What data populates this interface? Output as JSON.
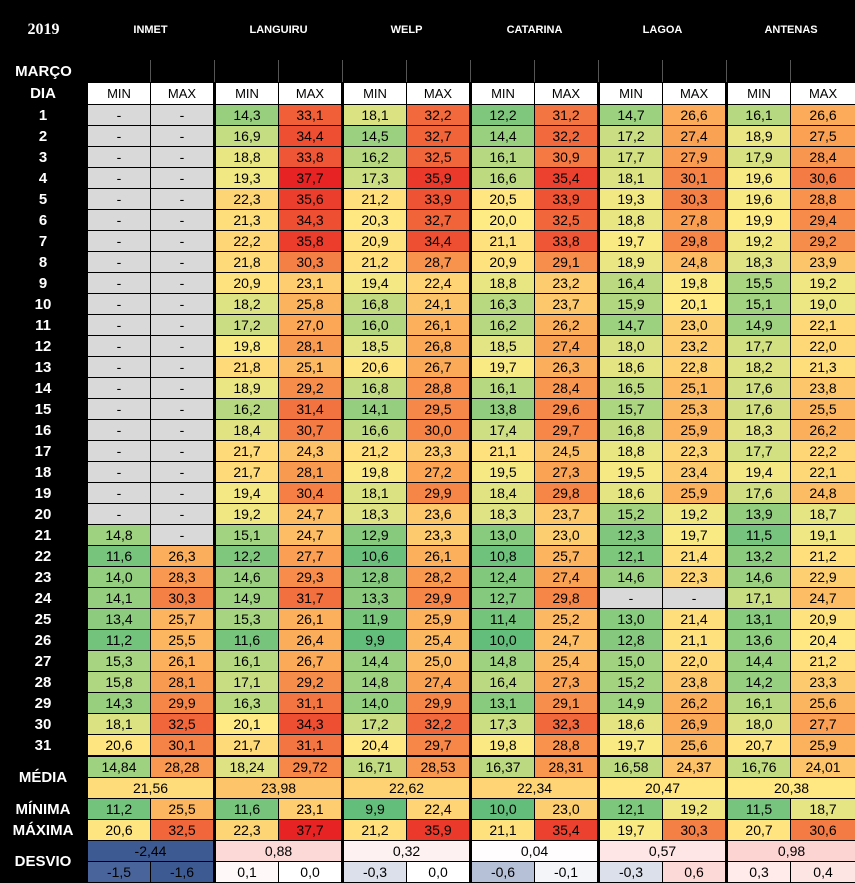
{
  "year": "2019",
  "month_label": "MARÇO",
  "day_label": "DIA",
  "min_label": "MIN",
  "max_label": "MAX",
  "stations": [
    "INMET",
    "LANGUIRU",
    "WELP",
    "CATARINA",
    "LAGOA",
    "ANTENAS"
  ],
  "rows": [
    {
      "day": "1",
      "v": [
        "-",
        "-",
        "14,3",
        "33,1",
        "18,1",
        "32,2",
        "12,2",
        "31,2",
        "14,7",
        "26,6",
        "16,1",
        "26,6"
      ]
    },
    {
      "day": "2",
      "v": [
        "-",
        "-",
        "16,9",
        "34,4",
        "14,5",
        "32,7",
        "14,4",
        "32,2",
        "17,2",
        "27,4",
        "18,9",
        "27,5"
      ]
    },
    {
      "day": "3",
      "v": [
        "-",
        "-",
        "18,8",
        "33,8",
        "16,2",
        "32,5",
        "16,1",
        "30,9",
        "17,7",
        "27,9",
        "17,9",
        "28,4"
      ]
    },
    {
      "day": "4",
      "v": [
        "-",
        "-",
        "19,3",
        "37,7",
        "17,3",
        "35,9",
        "16,6",
        "35,4",
        "18,1",
        "30,1",
        "19,6",
        "30,6"
      ]
    },
    {
      "day": "5",
      "v": [
        "-",
        "-",
        "22,3",
        "35,6",
        "21,2",
        "33,9",
        "20,5",
        "33,9",
        "19,3",
        "30,3",
        "19,6",
        "28,8"
      ]
    },
    {
      "day": "6",
      "v": [
        "-",
        "-",
        "21,3",
        "34,3",
        "20,3",
        "32,7",
        "20,0",
        "32,5",
        "18,8",
        "27,8",
        "19,9",
        "29,4"
      ]
    },
    {
      "day": "7",
      "v": [
        "-",
        "-",
        "22,2",
        "35,8",
        "20,9",
        "34,4",
        "21,1",
        "33,8",
        "19,7",
        "29,8",
        "19,2",
        "29,2"
      ]
    },
    {
      "day": "8",
      "v": [
        "-",
        "-",
        "21,8",
        "30,3",
        "21,2",
        "28,7",
        "20,9",
        "29,1",
        "18,9",
        "24,8",
        "18,3",
        "23,9"
      ]
    },
    {
      "day": "9",
      "v": [
        "-",
        "-",
        "20,9",
        "23,1",
        "19,4",
        "22,4",
        "18,8",
        "23,2",
        "16,4",
        "19,8",
        "15,5",
        "19,2"
      ]
    },
    {
      "day": "10",
      "v": [
        "-",
        "-",
        "18,2",
        "25,8",
        "16,8",
        "24,1",
        "16,3",
        "23,7",
        "15,9",
        "20,1",
        "15,1",
        "19,0"
      ]
    },
    {
      "day": "11",
      "v": [
        "-",
        "-",
        "17,2",
        "27,0",
        "16,0",
        "26,1",
        "16,2",
        "26,2",
        "14,7",
        "23,0",
        "14,9",
        "22,1"
      ]
    },
    {
      "day": "12",
      "v": [
        "-",
        "-",
        "19,8",
        "28,1",
        "18,5",
        "26,8",
        "18,5",
        "27,4",
        "18,0",
        "23,2",
        "17,7",
        "22,0"
      ]
    },
    {
      "day": "13",
      "v": [
        "-",
        "-",
        "21,8",
        "25,1",
        "20,6",
        "26,7",
        "19,7",
        "26,3",
        "18,6",
        "22,8",
        "18,2",
        "21,3"
      ]
    },
    {
      "day": "14",
      "v": [
        "-",
        "-",
        "18,9",
        "29,2",
        "16,8",
        "28,8",
        "16,1",
        "28,4",
        "16,5",
        "25,1",
        "17,6",
        "23,8"
      ]
    },
    {
      "day": "15",
      "v": [
        "-",
        "-",
        "16,2",
        "31,4",
        "14,1",
        "29,5",
        "13,8",
        "29,6",
        "15,7",
        "25,3",
        "17,6",
        "25,5"
      ]
    },
    {
      "day": "16",
      "v": [
        "-",
        "-",
        "18,4",
        "30,7",
        "16,6",
        "30,0",
        "17,4",
        "29,7",
        "16,8",
        "25,9",
        "18,3",
        "26,2"
      ]
    },
    {
      "day": "17",
      "v": [
        "-",
        "-",
        "21,7",
        "24,3",
        "21,2",
        "23,3",
        "21,1",
        "24,5",
        "18,8",
        "22,3",
        "17,7",
        "22,2"
      ]
    },
    {
      "day": "18",
      "v": [
        "-",
        "-",
        "21,7",
        "28,1",
        "19,8",
        "27,2",
        "19,5",
        "27,3",
        "19,5",
        "23,4",
        "19,4",
        "22,1"
      ]
    },
    {
      "day": "19",
      "v": [
        "-",
        "-",
        "19,4",
        "30,4",
        "18,1",
        "29,9",
        "18,4",
        "29,8",
        "18,6",
        "25,9",
        "17,6",
        "24,8"
      ]
    },
    {
      "day": "20",
      "v": [
        "-",
        "-",
        "19,2",
        "24,7",
        "18,3",
        "23,6",
        "18,3",
        "23,7",
        "15,2",
        "19,2",
        "13,9",
        "18,7"
      ]
    },
    {
      "day": "21",
      "v": [
        "14,8",
        "-",
        "15,1",
        "24,7",
        "12,9",
        "23,3",
        "13,0",
        "23,0",
        "12,3",
        "19,7",
        "11,5",
        "19,1"
      ]
    },
    {
      "day": "22",
      "v": [
        "11,6",
        "26,3",
        "12,2",
        "27,7",
        "10,6",
        "26,1",
        "10,8",
        "25,7",
        "12,1",
        "21,4",
        "13,2",
        "21,2"
      ]
    },
    {
      "day": "23",
      "v": [
        "14,0",
        "28,3",
        "14,6",
        "29,3",
        "12,8",
        "28,2",
        "12,4",
        "27,4",
        "14,6",
        "22,3",
        "14,6",
        "22,9"
      ]
    },
    {
      "day": "24",
      "v": [
        "14,1",
        "30,3",
        "14,9",
        "31,7",
        "13,3",
        "29,9",
        "12,7",
        "29,8",
        "-",
        "-",
        "17,1",
        "24,7"
      ]
    },
    {
      "day": "25",
      "v": [
        "13,4",
        "25,7",
        "15,3",
        "26,1",
        "11,9",
        "25,9",
        "11,4",
        "25,2",
        "13,0",
        "21,4",
        "13,1",
        "20,9"
      ]
    },
    {
      "day": "26",
      "v": [
        "11,2",
        "25,5",
        "11,6",
        "26,4",
        "9,9",
        "25,4",
        "10,0",
        "24,7",
        "12,8",
        "21,1",
        "13,6",
        "20,4"
      ]
    },
    {
      "day": "27",
      "v": [
        "15,3",
        "26,1",
        "16,1",
        "26,7",
        "14,4",
        "25,0",
        "14,8",
        "25,4",
        "15,0",
        "22,0",
        "14,4",
        "21,2"
      ]
    },
    {
      "day": "28",
      "v": [
        "15,8",
        "28,1",
        "17,1",
        "29,2",
        "14,8",
        "27,4",
        "16,4",
        "27,3",
        "15,2",
        "23,8",
        "14,2",
        "23,3"
      ]
    },
    {
      "day": "29",
      "v": [
        "14,3",
        "29,9",
        "16,3",
        "31,1",
        "14,0",
        "29,9",
        "13,1",
        "29,1",
        "14,9",
        "26,2",
        "16,1",
        "25,6"
      ]
    },
    {
      "day": "30",
      "v": [
        "18,1",
        "32,5",
        "20,1",
        "34,3",
        "17,2",
        "32,2",
        "17,3",
        "32,3",
        "18,6",
        "26,9",
        "18,0",
        "27,7"
      ]
    },
    {
      "day": "31",
      "v": [
        "20,6",
        "30,1",
        "21,7",
        "31,1",
        "20,4",
        "29,7",
        "19,8",
        "28,8",
        "19,7",
        "25,6",
        "20,7",
        "25,9"
      ]
    }
  ],
  "media_label": "MÉDIA",
  "media": [
    "14,84",
    "28,28",
    "18,24",
    "29,72",
    "16,71",
    "28,53",
    "16,37",
    "28,31",
    "16,58",
    "24,37",
    "16,76",
    "24,01"
  ],
  "media_comb": [
    "21,56",
    "23,98",
    "22,62",
    "22,34",
    "20,47",
    "20,38"
  ],
  "minima_label": "MÍNIMA",
  "minima": [
    "11,2",
    "25,5",
    "11,6",
    "23,1",
    "9,9",
    "22,4",
    "10,0",
    "23,0",
    "12,1",
    "19,2",
    "11,5",
    "18,7"
  ],
  "maxima_label": "MÁXIMA",
  "maxima": [
    "20,6",
    "32,5",
    "22,3",
    "37,7",
    "21,2",
    "35,9",
    "21,1",
    "35,4",
    "19,7",
    "30,3",
    "20,7",
    "30,6"
  ],
  "desvio_label": "DESVIO",
  "desvio_comb": [
    "-2,44",
    "0,88",
    "0,32",
    "0,04",
    "0,57",
    "0,98"
  ],
  "desvio": [
    "-1,5",
    "-1,6",
    "0,1",
    "0,0",
    "-0,3",
    "0,0",
    "-0,6",
    "-0,1",
    "-0,3",
    "0,6",
    "0,3",
    "0,4"
  ],
  "colors": {
    "missing": "#d9d9d9",
    "header": "#000000",
    "desvio_neg": "#3d5a93",
    "desvio_pos": "#f8b4b0"
  }
}
